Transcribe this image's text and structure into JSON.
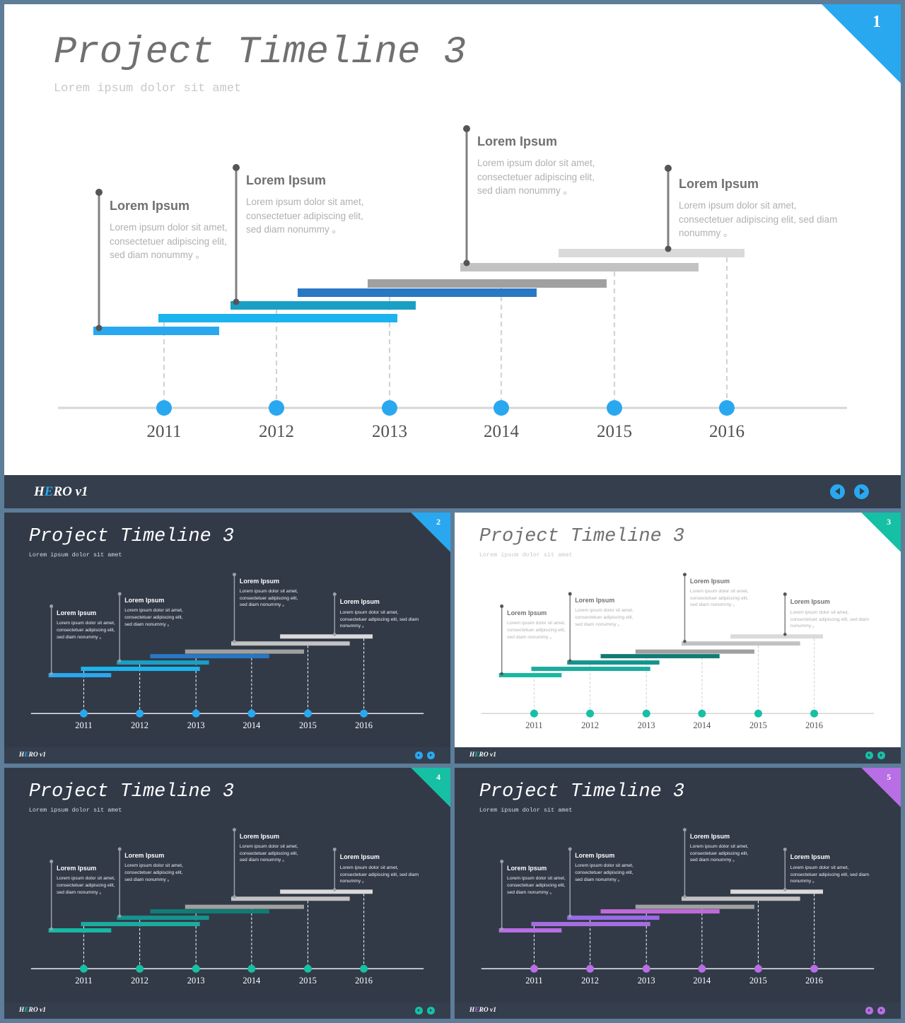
{
  "brand": {
    "prefix": "H",
    "accent": "E",
    "rest": "RO v1"
  },
  "content": {
    "title_a": "Project",
    "title_b": "Timeline 3",
    "subtitle": "Lorem ipsum dolor sit amet",
    "years": [
      "2011",
      "2012",
      "2013",
      "2014",
      "2015",
      "2016"
    ],
    "callouts": [
      {
        "title": "Lorem Ipsum",
        "text": "Lorem ipsum dolor sit amet, consectetuer adipiscing elit, sed diam nonummy 。"
      },
      {
        "title": "Lorem Ipsum",
        "text": "Lorem ipsum dolor sit amet, consectetuer adipiscing elit, sed diam nonummy 。"
      },
      {
        "title": "Lorem Ipsum",
        "text": "Lorem ipsum dolor sit amet, consectetuer adipiscing elit, sed diam nonummy 。"
      },
      {
        "title": "Lorem Ipsum",
        "text": "Lorem ipsum dolor sit amet, consectetuer adipiscing elit, sed diam nonummy 。"
      }
    ]
  },
  "slides": [
    {
      "number": "1",
      "theme": "light",
      "accent": "#29a8f0",
      "bar_colors": [
        "#29a8f0",
        "#1bb4ee",
        "#1a9fc4",
        "#2878c4",
        "#a0a0a0",
        "#c2c2c2",
        "#dadada"
      ]
    },
    {
      "number": "2",
      "theme": "dark",
      "accent": "#29a8f0",
      "bar_colors": [
        "#29a8f0",
        "#1bb4ee",
        "#1a9fc4",
        "#2878c4",
        "#a0a0a0",
        "#c2c2c2",
        "#dadada"
      ]
    },
    {
      "number": "3",
      "theme": "light",
      "accent": "#16c0a4",
      "bar_colors": [
        "#17b9a3",
        "#1cab9f",
        "#14948e",
        "#107c74",
        "#a0a0a0",
        "#c2c2c2",
        "#dadada"
      ]
    },
    {
      "number": "4",
      "theme": "dark",
      "accent": "#16c0a4",
      "bar_colors": [
        "#17b9a3",
        "#1cab9f",
        "#14948e",
        "#107c74",
        "#a0a0a0",
        "#c2c2c2",
        "#dadada"
      ]
    },
    {
      "number": "5",
      "theme": "dark",
      "accent": "#b86ee4",
      "bar_colors": [
        "#b86ee4",
        "#a66ee0",
        "#9a6ae8",
        "#c06ad8",
        "#a0a0a0",
        "#c2c2c2",
        "#dadada"
      ]
    }
  ]
}
